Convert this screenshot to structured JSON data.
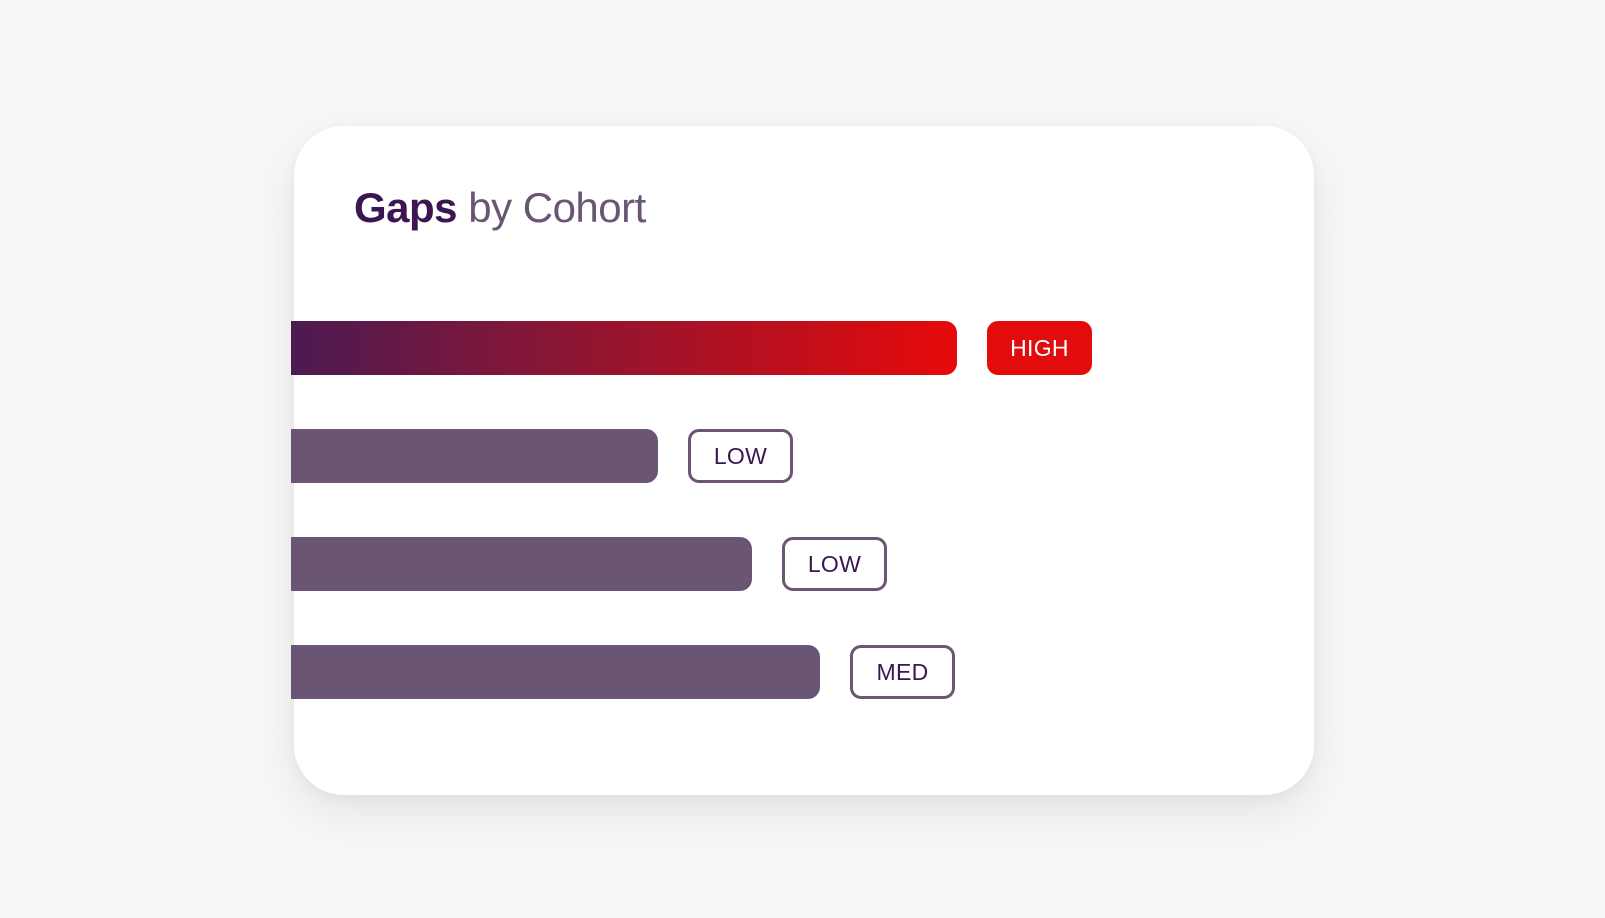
{
  "title": {
    "strong": "Gaps",
    "rest": " by Cohort"
  },
  "colors": {
    "accent_high": "#e20c0c",
    "bar_default": "#6b5574",
    "text_dark": "#3b1650"
  },
  "chart_data": {
    "type": "bar",
    "orientation": "horizontal",
    "title": "Gaps by Cohort",
    "xlabel": "",
    "ylabel": "",
    "grid": false,
    "categories": [],
    "values": [
      0.78,
      0.43,
      0.54,
      0.62
    ],
    "labels": [
      "HIGH",
      "LOW",
      "LOW",
      "MED"
    ],
    "levels": [
      "high",
      "low",
      "low",
      "med"
    ],
    "xlim": [
      0,
      1
    ]
  }
}
